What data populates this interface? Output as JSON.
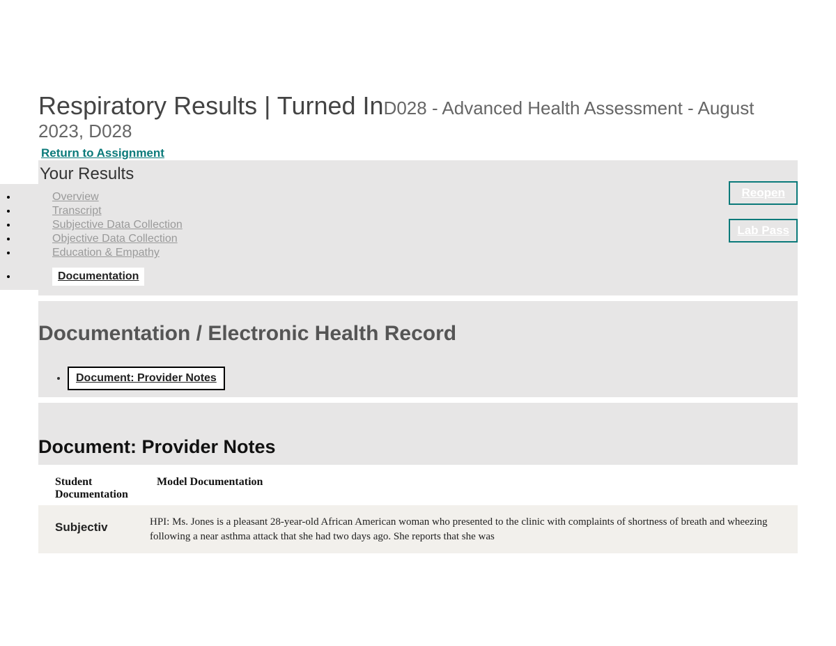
{
  "header": {
    "title_main": "Respiratory Results | Turned In",
    "title_sub": "D028 - Advanced Health Assessment - August 2023, D028",
    "return_link": "Return to Assignment"
  },
  "results": {
    "heading": "Your Results",
    "buttons": {
      "reopen": "Reopen",
      "lab_pass": "Lab Pass"
    }
  },
  "nav": {
    "items": [
      {
        "label": "Overview",
        "active": false
      },
      {
        "label": "Transcript",
        "active": false
      },
      {
        "label": "Subjective Data Collection",
        "active": false
      },
      {
        "label": "Objective Data Collection",
        "active": false
      },
      {
        "label": "Education & Empathy",
        "active": false
      },
      {
        "label": "Documentation",
        "active": true
      }
    ]
  },
  "section": {
    "title": "Documentation / Electronic Health Record",
    "doc_tab": "Document: Provider Notes",
    "subtitle": "Document: Provider Notes"
  },
  "table": {
    "col1_header": "Student Documentation",
    "col2_header": "Model Documentation",
    "row1_col1": "Subjectiv",
    "row1_col2": "HPI: Ms. Jones is a pleasant 28-year-old African American woman who presented to the clinic with complaints of shortness of breath and wheezing following a near asthma attack that she had two days ago. She reports that she was"
  },
  "colors": {
    "teal": "#0b7a7a",
    "panel_bg": "#e7e6e6",
    "row_bg": "#f2f0ec",
    "nav_gray": "#9a9a9a",
    "heading_gray": "#555"
  }
}
